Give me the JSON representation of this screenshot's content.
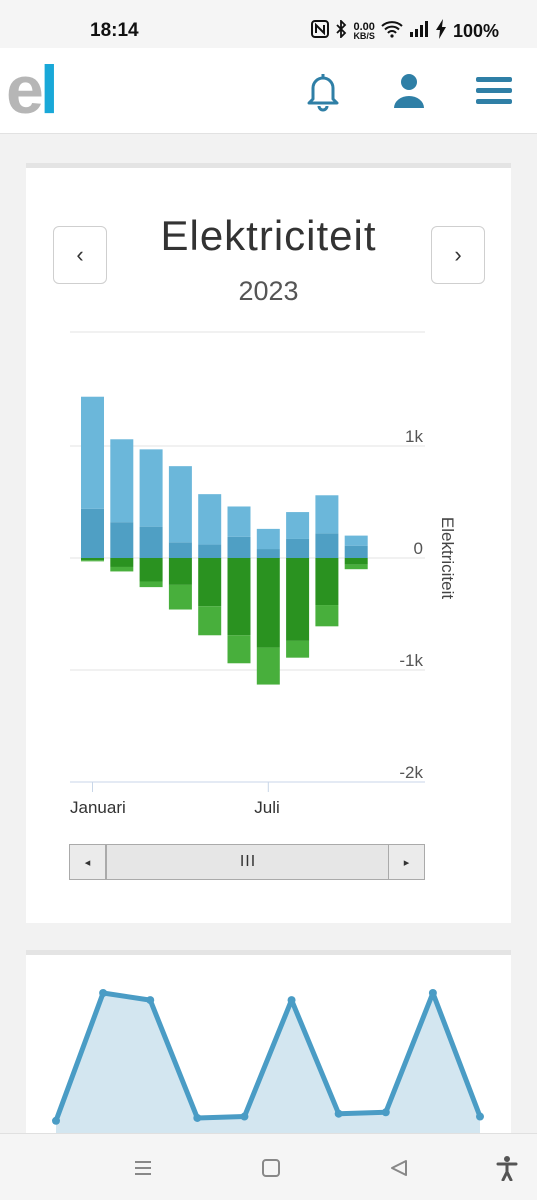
{
  "status_bar": {
    "time": "18:14",
    "net_speed_value": "0.00",
    "net_speed_unit": "KB/S",
    "battery": "100%",
    "icons": [
      "nfc-icon",
      "bluetooth-icon",
      "wifi-icon",
      "signal-icon",
      "charging-icon"
    ]
  },
  "app_bar": {
    "logo_e": "e",
    "logo_l": "l",
    "icons": [
      "bell-icon",
      "user-icon",
      "menu-icon"
    ],
    "accent": "#2f7fa6"
  },
  "card": {
    "title": "Elektriciteit",
    "year": "2023",
    "prev": "‹",
    "next": "›"
  },
  "chart_data": [
    {
      "type": "bar",
      "stacked": true,
      "ylabel": "Elektriciteit",
      "ylim": [
        -2000,
        2000
      ],
      "y_ticks": [
        1000,
        0,
        -1000,
        -2000
      ],
      "y_tick_labels": [
        "1k",
        "0",
        "-1k",
        "-2k"
      ],
      "x_tick_labels": [
        {
          "label": "Januari",
          "index": 0
        },
        {
          "label": "Juli",
          "index": 6
        }
      ],
      "categories": [
        "1",
        "2",
        "3",
        "4",
        "5",
        "6",
        "7",
        "8",
        "9",
        "10",
        "11"
      ],
      "series": [
        {
          "color": "#4f9fc4",
          "values": [
            440,
            320,
            280,
            140,
            120,
            190,
            80,
            170,
            220,
            110,
            0
          ]
        },
        {
          "color": "#6bb7da",
          "values": [
            1000,
            740,
            690,
            680,
            450,
            270,
            180,
            240,
            340,
            90,
            0
          ]
        },
        {
          "color": "#2a9220",
          "values": [
            -20,
            -80,
            -210,
            -240,
            -430,
            -690,
            -800,
            -740,
            -420,
            -60,
            0
          ]
        },
        {
          "color": "#48af3c",
          "values": [
            -10,
            -40,
            -50,
            -220,
            -260,
            -250,
            -330,
            -150,
            -190,
            -40,
            0
          ]
        }
      ],
      "grid": true,
      "legend": "none"
    },
    {
      "type": "area",
      "color": "#4a9cc5",
      "fill": "#d3e6f0",
      "baseline_color": "#3a9a2e",
      "values": [
        0.1,
        1.0,
        0.95,
        0.12,
        0.13,
        0.95,
        0.15,
        0.16,
        1.0,
        0.13
      ]
    }
  ],
  "scrollbar": {
    "left_arrow": "◂",
    "right_arrow": "▸",
    "thumb_grip": "III"
  },
  "nav_bar": {
    "icons": [
      "recent-apps-icon",
      "home-icon",
      "back-icon",
      "accessibility-icon"
    ]
  }
}
